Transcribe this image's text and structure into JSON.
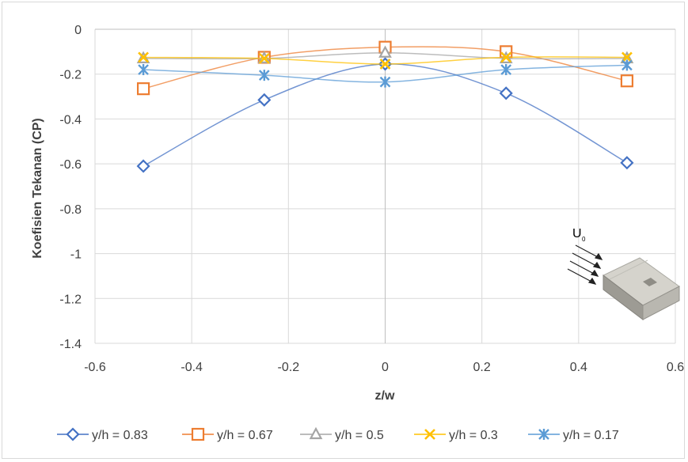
{
  "chart_data": {
    "type": "scatter",
    "xlabel": "z/w",
    "ylabel": "Koefisien Tekanan (CP)",
    "xlim": [
      -0.6,
      0.6
    ],
    "ylim": [
      -1.4,
      0
    ],
    "xticks": [
      -0.6,
      -0.4,
      -0.2,
      0,
      0.2,
      0.4,
      0.6
    ],
    "yticks": [
      0,
      -0.2,
      -0.4,
      -0.6,
      -0.8,
      -1,
      -1.2,
      -1.4
    ],
    "grid": true,
    "legend_position": "bottom",
    "smoothed_lines": true,
    "x": [
      -0.5,
      -0.25,
      0,
      0.25,
      0.5
    ],
    "series": [
      {
        "name": "y/h = 0.83",
        "values": [
          -0.61,
          -0.315,
          -0.155,
          -0.285,
          -0.595
        ],
        "color": "#4472C4",
        "marker": "diamond"
      },
      {
        "name": "y/h = 0.67",
        "values": [
          -0.265,
          -0.125,
          -0.08,
          -0.1,
          -0.23
        ],
        "color": "#ED7D31",
        "marker": "square"
      },
      {
        "name": "y/h = 0.5",
        "values": [
          -0.13,
          -0.13,
          -0.105,
          -0.13,
          -0.13
        ],
        "color": "#A5A5A5",
        "marker": "triangle"
      },
      {
        "name": "y/h = 0.3",
        "values": [
          -0.125,
          -0.13,
          -0.155,
          -0.125,
          -0.125
        ],
        "color": "#FFC000",
        "marker": "x"
      },
      {
        "name": "y/h = 0.17",
        "values": [
          -0.18,
          -0.205,
          -0.235,
          -0.18,
          -0.16
        ],
        "color": "#5B9BD5",
        "marker": "star"
      }
    ]
  },
  "inset": {
    "label_main": "U",
    "label_sub": "0",
    "icon": "bus-model-with-wind-arrows-icon"
  }
}
